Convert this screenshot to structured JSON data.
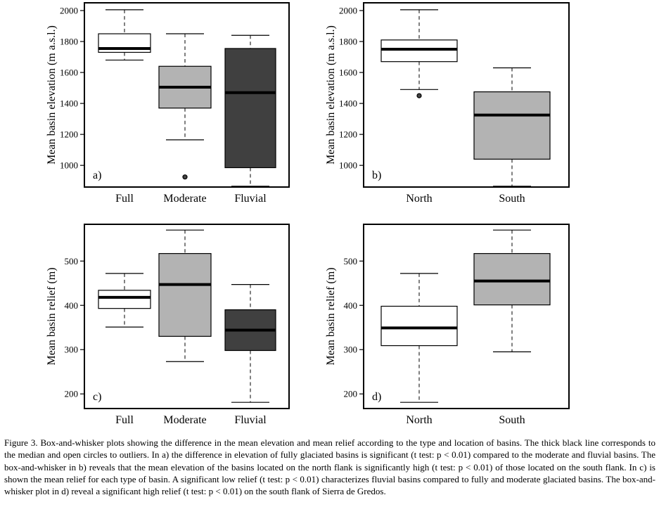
{
  "figure_caption": "Figure 3. Box-and-whisker plots showing the difference in the mean elevation and mean relief according to the type and location of basins. The thick black line corresponds to the median and open circles to outliers. In a) the difference in elevation of fully glaciated basins is significant (t test: p < 0.01) compared to the moderate and fluvial basins. The box-and-whisker in b) reveals that the mean elevation of the basins located on the north flank is significantly high (t test: p < 0.01) of those located on the south flank. In c) is shown the mean relief for each type of basin. A significant low relief (t test: p < 0.01) characterizes fluvial basins compared to fully and moderate glaciated basins. The box-and-whisker plot in d) reveal a significant high relief (t test: p < 0.01) on the south flank of Sierra de Gredos.",
  "colors": {
    "white": "#ffffff",
    "light_gray": "#b3b3b3",
    "dark_gray": "#404040"
  },
  "chart_data": [
    {
      "type": "box",
      "panel_label": "a)",
      "ylabel": "Mean basin elevation (m a.s.l.)",
      "ylim": [
        860,
        2050
      ],
      "yticks": [
        1000,
        1200,
        1400,
        1600,
        1800,
        2000
      ],
      "categories": [
        "Full",
        "Moderate",
        "Fluvial"
      ],
      "boxes": [
        {
          "min": 1680,
          "q1": 1730,
          "median": 1755,
          "q3": 1850,
          "max": 2005,
          "outliers": [],
          "fill": "white"
        },
        {
          "min": 1165,
          "q1": 1370,
          "median": 1505,
          "q3": 1640,
          "max": 1850,
          "outliers": [
            925
          ],
          "fill": "light_gray"
        },
        {
          "min": 865,
          "q1": 985,
          "median": 1470,
          "q3": 1755,
          "max": 1840,
          "outliers": [],
          "fill": "dark_gray"
        }
      ]
    },
    {
      "type": "box",
      "panel_label": "b)",
      "ylabel": "Mean basin elevation (m a.s.l.)",
      "ylim": [
        860,
        2050
      ],
      "yticks": [
        1000,
        1200,
        1400,
        1600,
        1800,
        2000
      ],
      "categories": [
        "North",
        "South"
      ],
      "boxes": [
        {
          "min": 1490,
          "q1": 1670,
          "median": 1750,
          "q3": 1810,
          "max": 2005,
          "outliers": [
            1450
          ],
          "fill": "white"
        },
        {
          "min": 865,
          "q1": 1040,
          "median": 1325,
          "q3": 1475,
          "max": 1630,
          "outliers": [],
          "fill": "light_gray"
        }
      ]
    },
    {
      "type": "box",
      "panel_label": "c)",
      "ylabel": "Mean basin relief (m)",
      "ylim": [
        167,
        583
      ],
      "yticks": [
        200,
        300,
        400,
        500
      ],
      "categories": [
        "Full",
        "Moderate",
        "Fluvial"
      ],
      "boxes": [
        {
          "min": 351,
          "q1": 393,
          "median": 418,
          "q3": 434,
          "max": 472,
          "outliers": [],
          "fill": "white"
        },
        {
          "min": 273,
          "q1": 330,
          "median": 447,
          "q3": 517,
          "max": 570,
          "outliers": [],
          "fill": "light_gray"
        },
        {
          "min": 181,
          "q1": 298,
          "median": 344,
          "q3": 390,
          "max": 447,
          "outliers": [],
          "fill": "dark_gray"
        }
      ]
    },
    {
      "type": "box",
      "panel_label": "d)",
      "ylabel": "Mean basin relief (m)",
      "ylim": [
        167,
        583
      ],
      "yticks": [
        200,
        300,
        400,
        500
      ],
      "categories": [
        "North",
        "South"
      ],
      "boxes": [
        {
          "min": 181,
          "q1": 309,
          "median": 349,
          "q3": 398,
          "max": 472,
          "outliers": [],
          "fill": "white"
        },
        {
          "min": 295,
          "q1": 401,
          "median": 455,
          "q3": 517,
          "max": 570,
          "outliers": [],
          "fill": "light_gray"
        }
      ]
    }
  ]
}
